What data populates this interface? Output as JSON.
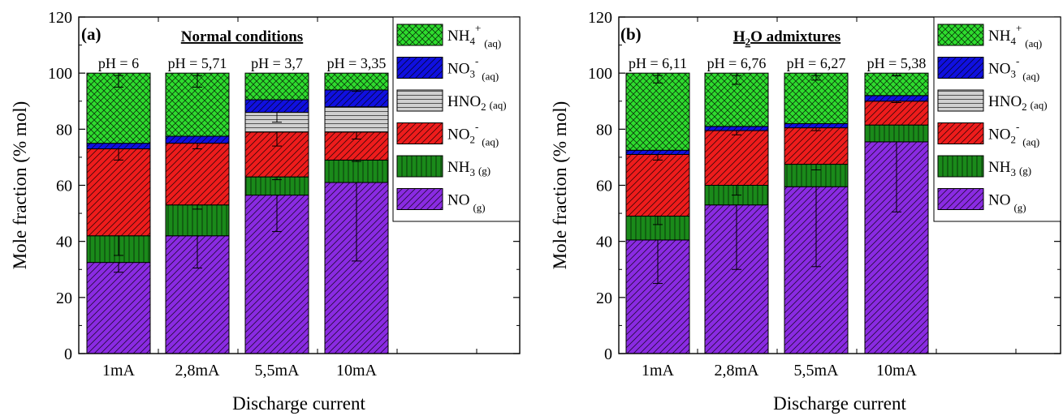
{
  "species": [
    {
      "key": "NO",
      "base": "NO",
      "sup": "",
      "sub": "(g)",
      "color": "#8a2be2",
      "pattern": "diag"
    },
    {
      "key": "NH3",
      "base": "NH",
      "sub1": "3",
      "sup": "",
      "sub": "(g)",
      "color": "#1a8a1a",
      "pattern": "vert"
    },
    {
      "key": "NO2-",
      "base": "NO",
      "sub1": "2",
      "sup": "-",
      "sub": "(aq)",
      "color": "#ee1c1c",
      "pattern": "diag"
    },
    {
      "key": "HNO2",
      "base": "HNO",
      "sub1": "2",
      "sup": "",
      "sub": "(aq)",
      "color": "#d0d0d0",
      "pattern": "horiz"
    },
    {
      "key": "NO3-",
      "base": "NO",
      "sub1": "3",
      "sup": "-",
      "sub": "(aq)",
      "color": "#1010e0",
      "pattern": "diag"
    },
    {
      "key": "NH4+",
      "base": "NH",
      "sub1": "4",
      "sup": "+",
      "sub": "(aq)",
      "color": "#2edc2e",
      "pattern": "cross"
    }
  ],
  "chart_data": [
    {
      "type": "bar",
      "stacked": true,
      "panel": "(a)",
      "title": "Normal conditions",
      "xlabel": "Discharge current",
      "ylabel": "Mole fraction (% mol)",
      "ylim": [
        0,
        120
      ],
      "yticks": [
        0,
        20,
        40,
        60,
        80,
        100,
        120
      ],
      "categories": [
        "1mA",
        "2,8mA",
        "5,5mA",
        "10mA"
      ],
      "ph_labels": [
        "pH = 6",
        "pH = 5,71",
        "pH = 3,7",
        "pH = 3,35"
      ],
      "legend": [
        "NH4+",
        "NO3-",
        "HNO2",
        "NO2-",
        "NH3",
        "NO"
      ],
      "series": [
        {
          "key": "NO",
          "values": [
            32.5,
            42,
            56.5,
            61
          ],
          "err_low": [
            3.5,
            11.5,
            13,
            28
          ],
          "err_high": [
            0,
            0,
            0,
            0
          ]
        },
        {
          "key": "NH3",
          "values": [
            9.5,
            11,
            6.5,
            8
          ],
          "err_low": [
            7,
            1.5,
            1,
            0.5
          ],
          "err_high": [
            0,
            0,
            0,
            0
          ]
        },
        {
          "key": "NO2-",
          "values": [
            31,
            22,
            16,
            10
          ],
          "err_low": [
            4,
            2,
            5,
            2.5
          ],
          "err_high": [
            0,
            0,
            0,
            0
          ]
        },
        {
          "key": "HNO2",
          "values": [
            0,
            0,
            7,
            9
          ],
          "err_low": [
            0,
            0,
            3.5,
            0
          ],
          "err_high": [
            0,
            0,
            0,
            0
          ]
        },
        {
          "key": "NO3-",
          "values": [
            2,
            2.5,
            4.5,
            6
          ],
          "err_low": [
            0,
            0,
            0,
            0.5
          ],
          "err_high": [
            0,
            0,
            0,
            0
          ]
        },
        {
          "key": "NH4+",
          "values": [
            25,
            22.5,
            9.5,
            6
          ],
          "err_low": [
            5,
            5,
            0,
            0
          ],
          "err_high": [
            0,
            0,
            0,
            0
          ]
        }
      ]
    },
    {
      "type": "bar",
      "stacked": true,
      "panel": "(b)",
      "title": "H2O admixtures",
      "xlabel": "Discharge current",
      "ylabel": "Mole fraction (% mol)",
      "ylim": [
        0,
        120
      ],
      "yticks": [
        0,
        20,
        40,
        60,
        80,
        100,
        120
      ],
      "categories": [
        "1mA",
        "2,8mA",
        "5,5mA",
        "10mA"
      ],
      "ph_labels": [
        "pH = 6,11",
        "pH = 6,76",
        "pH = 6,27",
        "pH = 5,38"
      ],
      "legend": [
        "NH4+",
        "NO3-",
        "HNO2",
        "NO2-",
        "NH3",
        "NO"
      ],
      "series": [
        {
          "key": "NO",
          "values": [
            40.5,
            53,
            59.5,
            75.5
          ],
          "err_low": [
            15.5,
            23,
            28.5,
            25
          ],
          "err_high": [
            0,
            0,
            0,
            0
          ]
        },
        {
          "key": "NH3",
          "values": [
            8.5,
            7,
            8,
            6
          ],
          "err_low": [
            3,
            3.5,
            2,
            0
          ],
          "err_high": [
            0,
            0,
            0,
            0
          ]
        },
        {
          "key": "NO2-",
          "values": [
            22,
            19.5,
            13,
            8.5
          ],
          "err_low": [
            2,
            1.5,
            1,
            0.5
          ],
          "err_high": [
            0,
            0,
            0,
            0
          ]
        },
        {
          "key": "HNO2",
          "values": [
            0,
            0,
            0,
            0
          ],
          "err_low": [
            0,
            0,
            0,
            0
          ],
          "err_high": [
            0,
            0,
            0,
            0
          ]
        },
        {
          "key": "NO3-",
          "values": [
            1.5,
            1.5,
            1.5,
            2
          ],
          "err_low": [
            0,
            0,
            0,
            0
          ],
          "err_high": [
            0,
            0,
            0,
            0
          ]
        },
        {
          "key": "NH4+",
          "values": [
            27.5,
            19,
            18,
            8
          ],
          "err_low": [
            3.5,
            4,
            2.5,
            1
          ],
          "err_high": [
            0,
            0,
            0,
            0
          ]
        }
      ]
    }
  ]
}
